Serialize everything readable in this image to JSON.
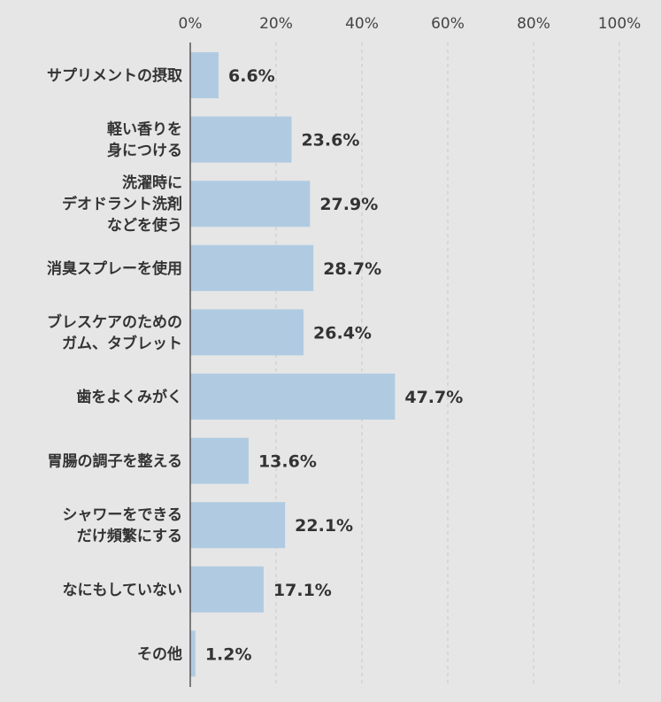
{
  "chart_data": {
    "type": "bar",
    "orientation": "horizontal",
    "categories": [
      [
        "サプリメントの摂取"
      ],
      [
        "軽い香りを",
        "身につける"
      ],
      [
        "洗濯時に",
        "デオドラント洗剤",
        "などを使う"
      ],
      [
        "消臭スプレーを使用"
      ],
      [
        "ブレスケアのための",
        "ガム、タブレット"
      ],
      [
        "歯をよくみがく"
      ],
      [
        "胃腸の調子を整える"
      ],
      [
        "シャワーをできる",
        "だけ頻繁にする"
      ],
      [
        "なにもしていない"
      ],
      [
        "その他"
      ]
    ],
    "values": [
      6.6,
      23.6,
      27.9,
      28.7,
      26.4,
      47.7,
      13.6,
      22.1,
      17.1,
      1.2
    ],
    "value_labels": [
      "6.6%",
      "23.6%",
      "27.9%",
      "28.7%",
      "26.4%",
      "47.7%",
      "13.6%",
      "22.1%",
      "17.1%",
      "1.2%"
    ],
    "xlim": [
      0,
      100
    ],
    "ticks": [
      0,
      20,
      40,
      60,
      80,
      100
    ],
    "tick_labels": [
      "0%",
      "20%",
      "40%",
      "60%",
      "80%",
      "100%"
    ],
    "axis_position": "top",
    "grid": "dashed vertical",
    "bar_color": "#b0cbe1",
    "background_color": "#e6e6e6",
    "text_color": "#333333"
  }
}
